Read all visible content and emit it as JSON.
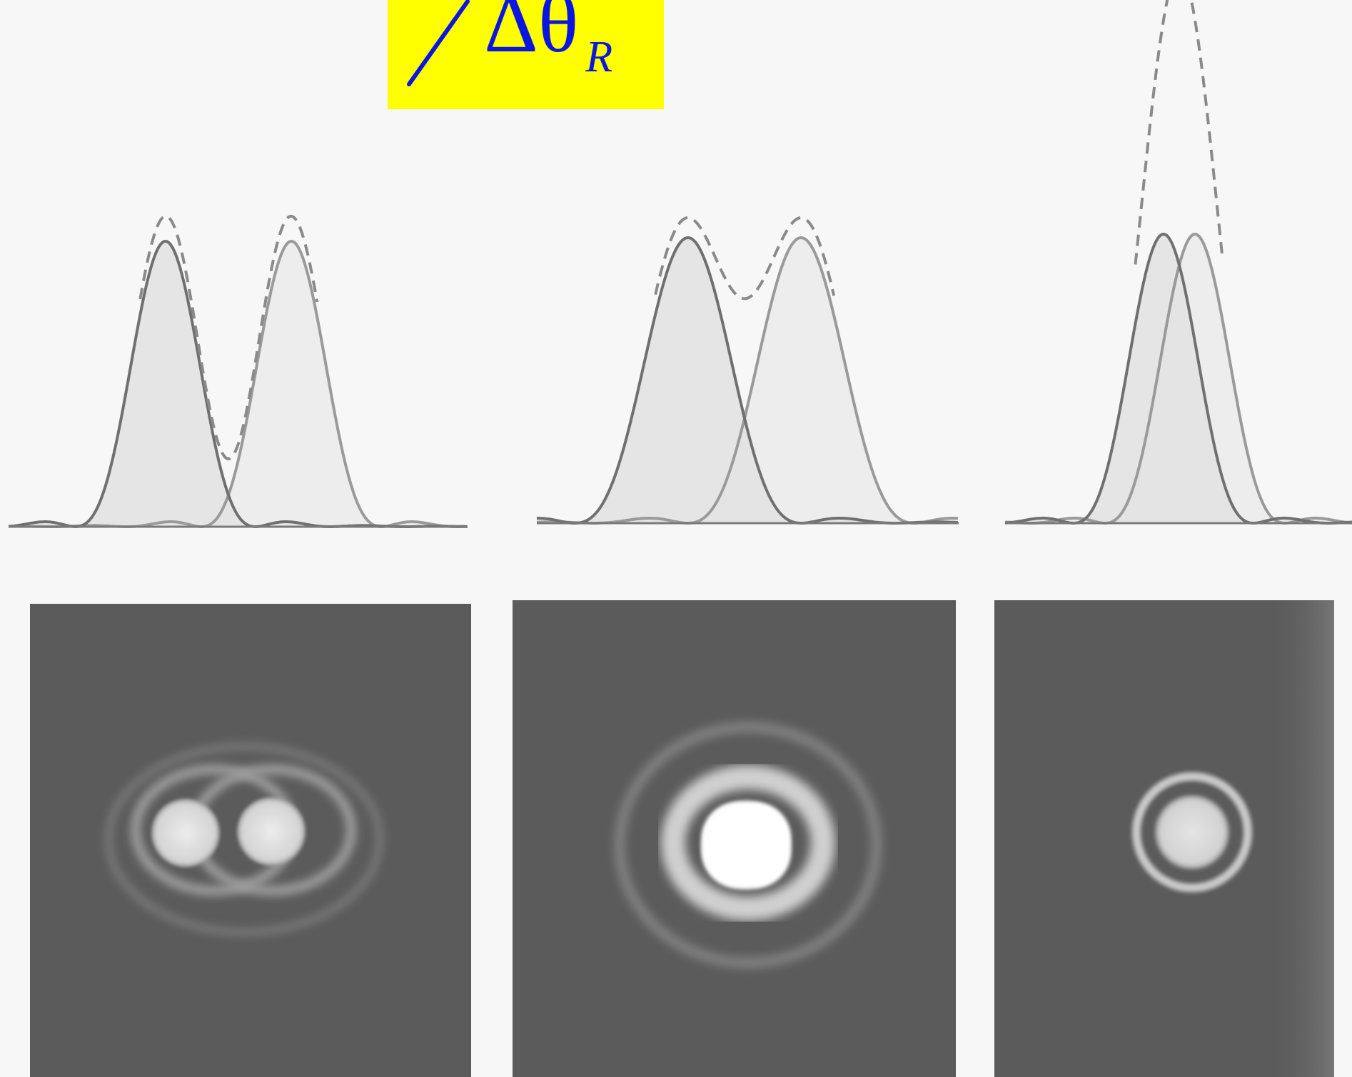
{
  "label": {
    "symbol": "Δθ",
    "subscript": "R",
    "background": "#ffff00",
    "text_color": "#0a16e0"
  },
  "colors": {
    "curve_left": "#707070",
    "curve_right": "#9a9a9a",
    "fill_left": "#e2e2e2",
    "fill_right": "#ebebeb",
    "dashed_sum": "#8a8a8a",
    "baseline": "#7a7a7a",
    "photo_background": "#5b5b5b",
    "photo_light": "#e8e8e8"
  },
  "panels": [
    {
      "id": "well-resolved",
      "peak_separation": 1.4,
      "sum_has_dip": true
    },
    {
      "id": "just-resolved",
      "peak_separation": 1.0,
      "sum_has_dip": true
    },
    {
      "id": "unresolved",
      "peak_separation": 0.35,
      "sum_has_dip": false
    }
  ]
}
